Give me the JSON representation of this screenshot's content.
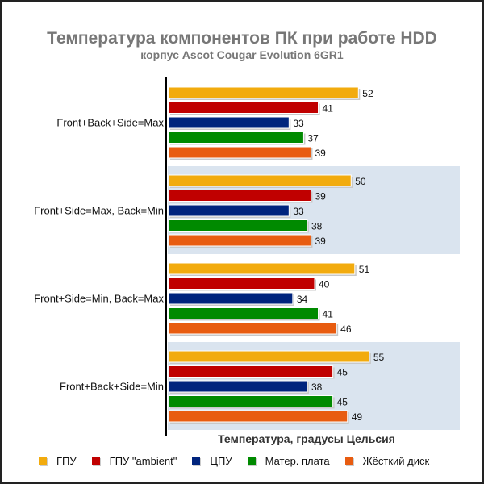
{
  "chart_data": {
    "type": "bar",
    "orientation": "horizontal",
    "title": "Температура компонентов ПК при работе HDD",
    "subtitle": "корпус Ascot Cougar Evolution 6GR1",
    "xlabel": "Температура, градусы Цельсия",
    "ylabel": "",
    "xlim": [
      0,
      80
    ],
    "grid": false,
    "legend_position": "bottom",
    "categories": [
      "Front+Back+Side=Max",
      "Front+Side=Max, Back=Min",
      "Front+Side=Min, Back=Max",
      "Front+Back+Side=Min"
    ],
    "series": [
      {
        "name": "ГПУ",
        "color": "#f2ab0e",
        "values": [
          52,
          50,
          51,
          55
        ]
      },
      {
        "name": "ГПУ \"ambient\"",
        "color": "#c00000",
        "values": [
          41,
          39,
          40,
          45
        ]
      },
      {
        "name": "ЦПУ",
        "color": "#00247d",
        "values": [
          33,
          33,
          34,
          38
        ]
      },
      {
        "name": "Матер. плата",
        "color": "#008a00",
        "values": [
          37,
          38,
          41,
          45
        ]
      },
      {
        "name": "Жёсткий диск",
        "color": "#e85c10",
        "values": [
          39,
          39,
          46,
          49
        ]
      }
    ]
  },
  "colors": {
    "band": "#dae4ef"
  }
}
